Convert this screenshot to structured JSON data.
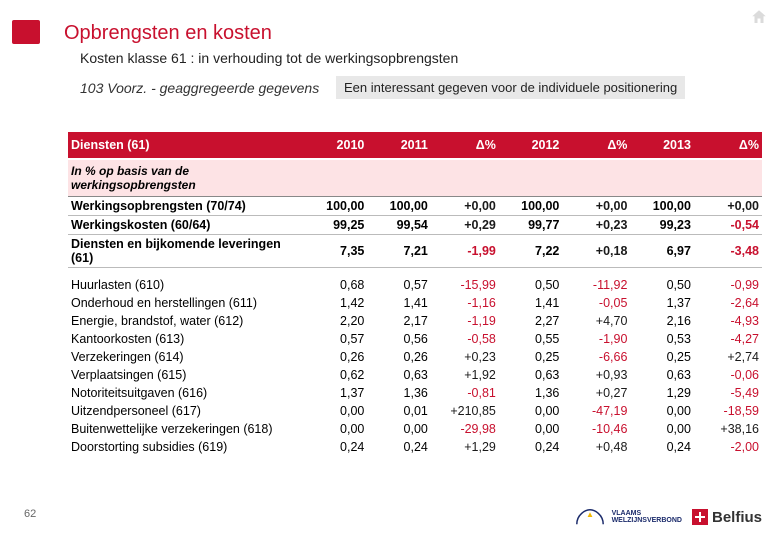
{
  "page": {
    "title": "Opbrengsten en kosten",
    "subtitle": "Kosten klasse 61 : in verhouding tot de werkingsopbrengsten",
    "datasource": "103  Voorz. - geaggregeerde gegevens",
    "note": "Een interessant gegeven voor de individuele positionering",
    "page_number": "62"
  },
  "table": {
    "headers": [
      "Diensten (61)",
      "2010",
      "2011",
      "Δ%",
      "2012",
      "Δ%",
      "2013",
      "Δ%"
    ],
    "subhead": "In % op basis van de werkingsopbrengsten",
    "bold_rows": [
      {
        "label": "Werkingsopbrengsten (70/74)",
        "v10": "100,00",
        "v11": "100,00",
        "d11": "+0,00",
        "v12": "100,00",
        "d12": "+0,00",
        "v13": "100,00",
        "d13": "+0,00"
      },
      {
        "label": "Werkingskosten  (60/64)",
        "v10": "99,25",
        "v11": "99,54",
        "d11": "+0,29",
        "v12": "99,77",
        "d12": "+0,23",
        "v13": "99,23",
        "d13": "-0,54"
      },
      {
        "label": "Diensten en bijkomende leveringen (61)",
        "v10": "7,35",
        "v11": "7,21",
        "d11": "-1,99",
        "v12": "7,22",
        "d12": "+0,18",
        "v13": "6,97",
        "d13": "-3,48"
      }
    ],
    "rows": [
      {
        "label": "Huurlasten (610)",
        "v10": "0,68",
        "v11": "0,57",
        "d11": "-15,99",
        "v12": "0,50",
        "d12": "-11,92",
        "v13": "0,50",
        "d13": "-0,99"
      },
      {
        "label": "Onderhoud en herstellingen (611)",
        "v10": "1,42",
        "v11": "1,41",
        "d11": "-1,16",
        "v12": "1,41",
        "d12": "-0,05",
        "v13": "1,37",
        "d13": "-2,64"
      },
      {
        "label": "Energie, brandstof, water (612)",
        "v10": "2,20",
        "v11": "2,17",
        "d11": "-1,19",
        "v12": "2,27",
        "d12": "+4,70",
        "v13": "2,16",
        "d13": "-4,93"
      },
      {
        "label": "Kantoorkosten (613)",
        "v10": "0,57",
        "v11": "0,56",
        "d11": "-0,58",
        "v12": "0,55",
        "d12": "-1,90",
        "v13": "0,53",
        "d13": "-4,27"
      },
      {
        "label": "Verzekeringen (614)",
        "v10": "0,26",
        "v11": "0,26",
        "d11": "+0,23",
        "v12": "0,25",
        "d12": "-6,66",
        "v13": "0,25",
        "d13": "+2,74"
      },
      {
        "label": "Verplaatsingen (615)",
        "v10": "0,62",
        "v11": "0,63",
        "d11": "+1,92",
        "v12": "0,63",
        "d12": "+0,93",
        "v13": "0,63",
        "d13": "-0,06"
      },
      {
        "label": "Notoriteitsuitgaven (616)",
        "v10": "1,37",
        "v11": "1,36",
        "d11": "-0,81",
        "v12": "1,36",
        "d12": "+0,27",
        "v13": "1,29",
        "d13": "-5,49"
      },
      {
        "label": "Uitzendpersoneel (617)",
        "v10": "0,00",
        "v11": "0,01",
        "d11": "+210,85",
        "v12": "0,00",
        "d12": "-47,19",
        "v13": "0,00",
        "d13": "-18,59"
      },
      {
        "label": "Buitenwettelijke verzekeringen (618)",
        "v10": "0,00",
        "v11": "0,00",
        "d11": "-29,98",
        "v12": "0,00",
        "d12": "-10,46",
        "v13": "0,00",
        "d13": "+38,16"
      },
      {
        "label": "Doorstorting subsidies (619)",
        "v10": "0,24",
        "v11": "0,24",
        "d11": "+1,29",
        "v12": "0,24",
        "d12": "+0,48",
        "v13": "0,24",
        "d13": "-2,00"
      }
    ]
  },
  "logos": {
    "vwv_text": "VLAAMS\nWELZIJNSVERBOND",
    "belfius_text": "Belfius"
  },
  "colors": {
    "brand_red": "#c8102e",
    "subhead_bg": "#fde3e5",
    "note_bg": "#e8e8e8",
    "text_neg": "#c8102e"
  }
}
